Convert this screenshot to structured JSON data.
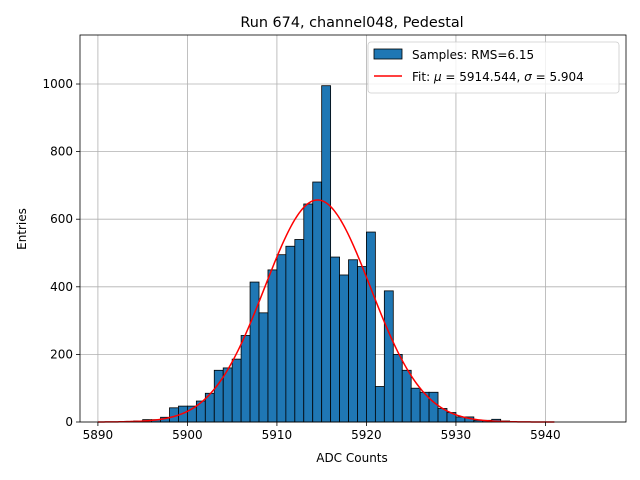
{
  "chart_data": {
    "type": "bar",
    "title": "Run 674, channel048, Pedestal",
    "xlabel": "ADC Counts",
    "ylabel": "Entries",
    "xlim": [
      5888,
      5949
    ],
    "ylim": [
      0,
      1145
    ],
    "xticks": [
      5890,
      5900,
      5910,
      5920,
      5930,
      5940
    ],
    "yticks": [
      0,
      200,
      400,
      600,
      800,
      1000
    ],
    "grid": true,
    "legend_position": "top-right",
    "bin_width": 1,
    "bin_start": 5893,
    "counts": [
      2,
      3,
      7,
      7,
      14,
      42,
      47,
      47,
      62,
      85,
      153,
      160,
      186,
      256,
      414,
      323,
      450,
      495,
      520,
      540,
      645,
      710,
      995,
      488,
      435,
      480,
      460,
      562,
      105,
      388,
      200,
      153,
      100,
      88,
      88,
      40,
      28,
      15,
      15,
      5,
      5,
      8,
      3
    ],
    "hist_color": "#1f77b4",
    "fit_color": "#ff0000",
    "fit": {
      "mu": 5914.544,
      "sigma": 5.904,
      "amplitude": 657,
      "x_start": 5890,
      "x_end": 5941
    },
    "legend": [
      {
        "kind": "patch",
        "label": "Samples: RMS=6.15",
        "color": "#1f77b4"
      },
      {
        "kind": "line",
        "label_prefix": "Fit: ",
        "mu_symbol": "μ",
        "mu_text": " = 5914.544, ",
        "sigma_symbol": "σ",
        "sigma_text": " = 5.904",
        "color": "#ff0000"
      }
    ]
  }
}
